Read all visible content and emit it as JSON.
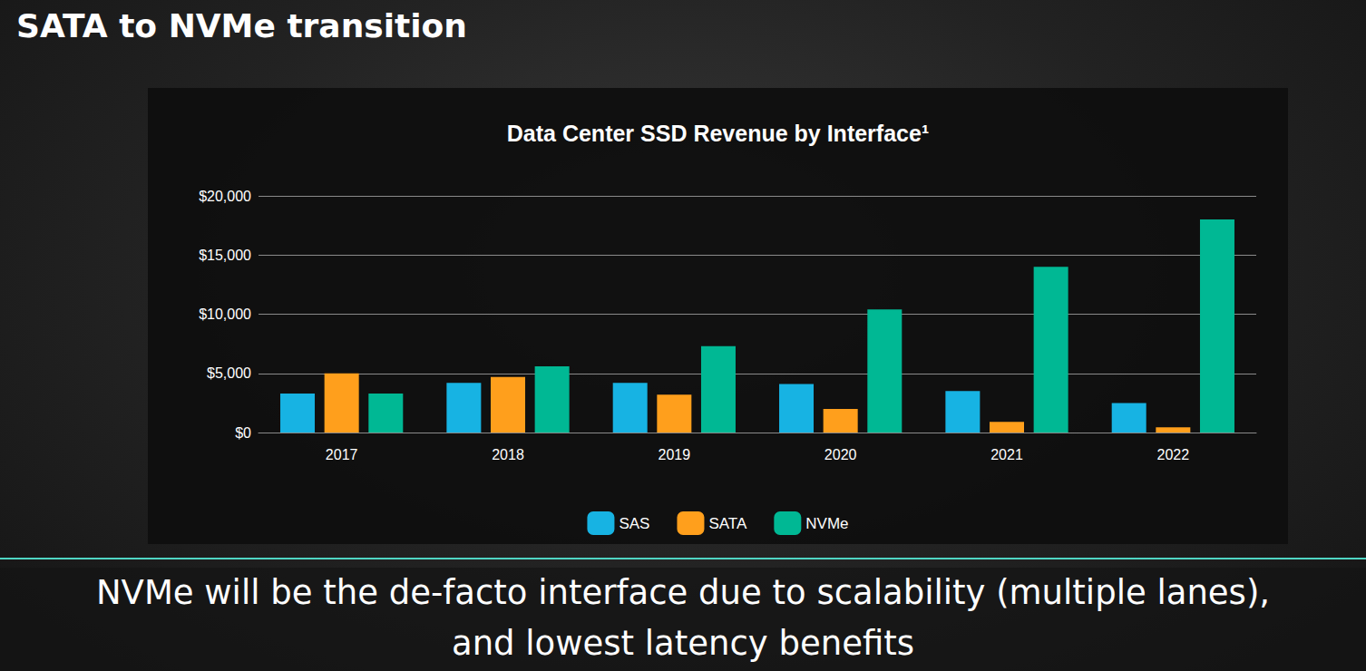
{
  "heading": "SATA to NVMe transition",
  "footer": [
    "NVMe will be the de-facto interface due to scalability (multiple lanes),",
    "and lowest latency benefits"
  ],
  "chart_data": {
    "type": "bar",
    "title": "Data Center SSD Revenue by Interface¹",
    "categories": [
      "2017",
      "2018",
      "2019",
      "2020",
      "2021",
      "2022"
    ],
    "series": [
      {
        "name": "SAS",
        "color": "#17b3e3",
        "values": [
          3300,
          4200,
          4200,
          4100,
          3500,
          2500
        ]
      },
      {
        "name": "SATA",
        "color": "#ff9f1c",
        "values": [
          5000,
          4700,
          3200,
          2000,
          900,
          450
        ]
      },
      {
        "name": "NVMe",
        "color": "#00b894",
        "values": [
          3300,
          5600,
          7300,
          10400,
          14000,
          18000
        ]
      }
    ],
    "ylim": [
      0,
      20000
    ],
    "yticks": [
      {
        "value": 0,
        "label": "$0"
      },
      {
        "value": 5000,
        "label": "$5,000"
      },
      {
        "value": 10000,
        "label": "$10,000"
      },
      {
        "value": 15000,
        "label": "$15,000"
      },
      {
        "value": 20000,
        "label": "$20,000"
      }
    ],
    "grid": true,
    "legend": "bottom"
  }
}
